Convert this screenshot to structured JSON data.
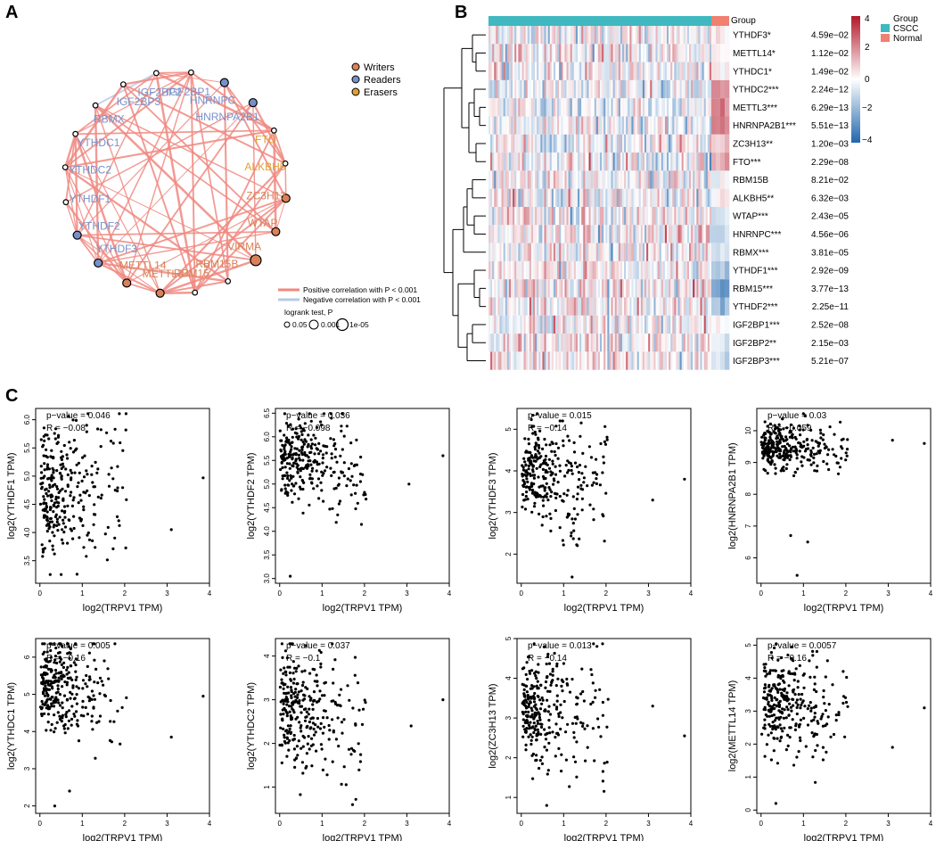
{
  "panels": {
    "a": "A",
    "b": "B",
    "c": "C"
  },
  "network": {
    "nodes": [
      {
        "name": "IGF2BP2",
        "role": "reader",
        "p": 0.05
      },
      {
        "name": "IGF2BP1",
        "role": "reader",
        "p": 0.05
      },
      {
        "name": "HNRNPC",
        "role": "reader",
        "p": 0.001
      },
      {
        "name": "HNRNPA2B1",
        "role": "reader",
        "p": 0.001
      },
      {
        "name": "FTO",
        "role": "eraser",
        "p": 0.05
      },
      {
        "name": "ALKBH5",
        "role": "eraser",
        "p": 0.05
      },
      {
        "name": "ZC3H13",
        "role": "writer",
        "p": 0.001
      },
      {
        "name": "WTAP",
        "role": "writer",
        "p": 0.001
      },
      {
        "name": "VIRMA",
        "role": "writer",
        "p": 1e-05
      },
      {
        "name": "RBM15B",
        "role": "writer",
        "p": 0.05
      },
      {
        "name": "RBM15",
        "role": "writer",
        "p": 0.05
      },
      {
        "name": "METTL3",
        "role": "writer",
        "p": 0.001
      },
      {
        "name": "METTL14",
        "role": "writer",
        "p": 0.001
      },
      {
        "name": "YTHDF3",
        "role": "reader",
        "p": 0.001
      },
      {
        "name": "YTHDF2",
        "role": "reader",
        "p": 0.001
      },
      {
        "name": "YTHDF1",
        "role": "reader",
        "p": 0.05
      },
      {
        "name": "YTHDC2",
        "role": "reader",
        "p": 0.05
      },
      {
        "name": "YTHDC1",
        "role": "reader",
        "p": 0.05
      },
      {
        "name": "RBMX",
        "role": "reader",
        "p": 0.05
      },
      {
        "name": "IGF2BP3",
        "role": "reader",
        "p": 0.05
      }
    ],
    "legend": {
      "writers": "Writers",
      "readers": "Readers",
      "erasers": "Erasers"
    },
    "corr_legend": {
      "positive": "Positive correlation with P < 0.001",
      "negative": "Negative correlation with P < 0.001"
    },
    "size_legend": {
      "title": "logrank test, P",
      "values": [
        "0.05",
        "0.001",
        "1e-05"
      ]
    },
    "colors": {
      "writer": "#d9825a",
      "reader": "#7890c8",
      "eraser": "#e0a030",
      "edge_pos": "#f08880",
      "edge_neg": "#b8c8e8"
    }
  },
  "heatmap": {
    "group_label": "Group",
    "legend_title": "Group",
    "groups": [
      "CSCC",
      "Normal"
    ],
    "group_colors": [
      "#40b8c0",
      "#f08070"
    ],
    "scale_ticks": [
      "4",
      "2",
      "0",
      "−2",
      "−4"
    ],
    "genes": [
      {
        "label": "YTHDF3*",
        "p": "4.59e−02",
        "mean": 0.0,
        "normal": 0.0
      },
      {
        "label": "METTL14*",
        "p": "1.12e−02",
        "mean": 0.0,
        "normal": 0.1
      },
      {
        "label": "YTHDC1*",
        "p": "1.49e−02",
        "mean": 0.0,
        "normal": 0.2
      },
      {
        "label": "YTHDC2***",
        "p": "2.24e−12",
        "mean": -0.3,
        "normal": 1.8
      },
      {
        "label": "METTL3***",
        "p": "6.29e−13",
        "mean": -0.3,
        "normal": 2.0
      },
      {
        "label": "HNRNPA2B1***",
        "p": "5.51e−13",
        "mean": -0.3,
        "normal": 2.2
      },
      {
        "label": "ZC3H13**",
        "p": "1.20e−03",
        "mean": -0.1,
        "normal": 0.9
      },
      {
        "label": "FTO***",
        "p": "2.29e−08",
        "mean": -0.2,
        "normal": 1.5
      },
      {
        "label": "RBM15B",
        "p": "8.21e−02",
        "mean": 0.0,
        "normal": 0.2
      },
      {
        "label": "ALKBH5**",
        "p": "6.32e−03",
        "mean": 0.0,
        "normal": 0.5
      },
      {
        "label": "WTAP***",
        "p": "2.43e−05",
        "mean": 0.1,
        "normal": -0.5
      },
      {
        "label": "HNRNPC***",
        "p": "4.56e−06",
        "mean": 0.1,
        "normal": -0.9
      },
      {
        "label": "RBMX***",
        "p": "3.81e−05",
        "mean": 0.1,
        "normal": -0.8
      },
      {
        "label": "YTHDF1***",
        "p": "2.92e−09",
        "mean": 0.2,
        "normal": -1.6
      },
      {
        "label": "RBM15***",
        "p": "3.77e−13",
        "mean": 0.3,
        "normal": -2.6
      },
      {
        "label": "YTHDF2***",
        "p": "2.25e−11",
        "mean": 0.2,
        "normal": -1.8
      },
      {
        "label": "IGF2BP1***",
        "p": "2.52e−08",
        "mean": 0.1,
        "normal": -0.5
      },
      {
        "label": "IGF2BP2**",
        "p": "2.15e−03",
        "mean": 0.1,
        "normal": -0.6
      },
      {
        "label": "IGF2BP3***",
        "p": "5.21e−07",
        "mean": 0.2,
        "normal": -0.8
      }
    ]
  },
  "chart_data": [
    {
      "type": "scatter",
      "title": "",
      "xlabel": "log2(TRPV1 TPM)",
      "ylabel": "log2(YTHDF1 TPM)",
      "pvalue_text": "p−value = 0.046",
      "r_text": "R = −0.08",
      "xlim": [
        -0.1,
        4.0
      ],
      "ylim": [
        3.1,
        6.2
      ],
      "xticks": [
        "0",
        "1",
        "2",
        "3",
        "4"
      ],
      "yticks": [
        "3.5",
        "4.0",
        "4.5",
        "5.0",
        "5.5",
        "6.0"
      ],
      "ytick_values": [
        3.5,
        4.0,
        4.5,
        5.0,
        5.5,
        6.0
      ],
      "center": 4.8,
      "spread": 0.55,
      "tilt": -0.05,
      "outliers": [
        [
          3.85,
          4.97
        ],
        [
          3.1,
          4.05
        ]
      ]
    },
    {
      "type": "scatter",
      "title": "",
      "xlabel": "log2(TRPV1 TPM)",
      "ylabel": "log2(YTHDF2 TPM)",
      "pvalue_text": "p−value = 0.036",
      "r_text": "R = −0.098",
      "xlim": [
        -0.1,
        4.0
      ],
      "ylim": [
        2.9,
        6.6
      ],
      "xticks": [
        "0",
        "1",
        "2",
        "3",
        "4"
      ],
      "yticks": [
        "3.0",
        "3.5",
        "4.0",
        "4.5",
        "5.0",
        "5.5",
        "6.0",
        "6.5"
      ],
      "ytick_values": [
        3.0,
        3.5,
        4.0,
        4.5,
        5.0,
        5.5,
        6.0,
        6.5
      ],
      "center": 5.5,
      "spread": 0.4,
      "tilt": -0.08,
      "outliers": [
        [
          3.85,
          5.6
        ],
        [
          3.05,
          5.0
        ],
        [
          0.25,
          3.05
        ]
      ]
    },
    {
      "type": "scatter",
      "title": "",
      "xlabel": "log2(TRPV1 TPM)",
      "ylabel": "log2(YTHDF3 TPM)",
      "pvalue_text": "p−value = 0.015",
      "r_text": "R = −0.14",
      "xlim": [
        -0.1,
        4.0
      ],
      "ylim": [
        1.3,
        5.5
      ],
      "xticks": [
        "0",
        "1",
        "2",
        "3",
        "4"
      ],
      "yticks": [
        "2",
        "3",
        "4",
        "5"
      ],
      "ytick_values": [
        2,
        3,
        4,
        5
      ],
      "center": 4.0,
      "spread": 0.5,
      "tilt": -0.12,
      "outliers": [
        [
          3.85,
          3.8
        ],
        [
          3.1,
          3.3
        ],
        [
          1.2,
          1.45
        ]
      ]
    },
    {
      "type": "scatter",
      "title": "",
      "xlabel": "log2(TRPV1 TPM)",
      "ylabel": "log2(HNRNPA2B1 TPM)",
      "pvalue_text": "p−value = 0.03",
      "r_text": "R = −0.059",
      "xlim": [
        -0.1,
        4.0
      ],
      "ylim": [
        5.2,
        10.7
      ],
      "xticks": [
        "0",
        "1",
        "2",
        "3",
        "4"
      ],
      "yticks": [
        "6",
        "7",
        "8",
        "9",
        "10"
      ],
      "ytick_values": [
        6,
        7,
        8,
        9,
        10
      ],
      "center": 9.5,
      "spread": 0.35,
      "tilt": -0.05,
      "outliers": [
        [
          3.85,
          9.6
        ],
        [
          3.1,
          9.7
        ],
        [
          0.85,
          5.45
        ],
        [
          1.1,
          6.5
        ],
        [
          0.7,
          6.7
        ]
      ]
    },
    {
      "type": "scatter",
      "title": "",
      "xlabel": "log2(TRPV1 TPM)",
      "ylabel": "log2(YTHDC1 TPM)",
      "pvalue_text": "p−value = 0.005",
      "r_text": "R = −0.16",
      "xlim": [
        -0.1,
        4.0
      ],
      "ylim": [
        1.8,
        6.5
      ],
      "xticks": [
        "0",
        "1",
        "2",
        "3",
        "4"
      ],
      "yticks": [
        "2",
        "3",
        "4",
        "5",
        "6"
      ],
      "ytick_values": [
        2,
        3,
        4,
        5,
        6
      ],
      "center": 5.2,
      "spread": 0.55,
      "tilt": -0.15,
      "outliers": [
        [
          3.85,
          4.95
        ],
        [
          3.1,
          3.85
        ],
        [
          0.35,
          2.0
        ],
        [
          0.7,
          2.4
        ]
      ]
    },
    {
      "type": "scatter",
      "title": "",
      "xlabel": "log2(TRPV1 TPM)",
      "ylabel": "log2(YTHDC2 TPM)",
      "pvalue_text": "p−value = 0.037",
      "r_text": "R = −0.1",
      "xlim": [
        -0.1,
        4.0
      ],
      "ylim": [
        0.4,
        4.4
      ],
      "xticks": [
        "0",
        "1",
        "2",
        "3",
        "4"
      ],
      "yticks": [
        "1",
        "2",
        "3",
        "4"
      ],
      "ytick_values": [
        1,
        2,
        3,
        4
      ],
      "center": 2.8,
      "spread": 0.6,
      "tilt": -0.1,
      "outliers": [
        [
          3.85,
          3.0
        ],
        [
          3.1,
          2.4
        ]
      ]
    },
    {
      "type": "scatter",
      "title": "",
      "xlabel": "log2(TRPV1 TPM)",
      "ylabel": "log2(ZC3H13 TPM)",
      "pvalue_text": "p−value = 0.013",
      "r_text": "R = −0.14",
      "xlim": [
        -0.1,
        4.0
      ],
      "ylim": [
        0.6,
        5.0
      ],
      "xticks": [
        "0",
        "1",
        "2",
        "3",
        "4"
      ],
      "yticks": [
        "1",
        "2",
        "3",
        "4",
        "5"
      ],
      "ytick_values": [
        1,
        2,
        3,
        4,
        5
      ],
      "center": 3.3,
      "spread": 0.55,
      "tilt": -0.15,
      "outliers": [
        [
          3.85,
          2.55
        ],
        [
          3.1,
          3.3
        ],
        [
          0.6,
          0.8
        ]
      ]
    },
    {
      "type": "scatter",
      "title": "",
      "xlabel": "log2(TRPV1 TPM)",
      "ylabel": "log2(METTL14 TPM)",
      "pvalue_text": "p−value = 0.0057",
      "r_text": "R = −0.16",
      "xlim": [
        -0.1,
        4.0
      ],
      "ylim": [
        -0.1,
        5.2
      ],
      "xticks": [
        "0",
        "1",
        "2",
        "3",
        "4"
      ],
      "yticks": [
        "0",
        "1",
        "2",
        "3",
        "4",
        "5"
      ],
      "ytick_values": [
        0,
        1,
        2,
        3,
        4,
        5
      ],
      "center": 3.3,
      "spread": 0.7,
      "tilt": -0.2,
      "outliers": [
        [
          3.85,
          3.1
        ],
        [
          3.1,
          1.9
        ],
        [
          0.35,
          0.2
        ]
      ]
    }
  ]
}
